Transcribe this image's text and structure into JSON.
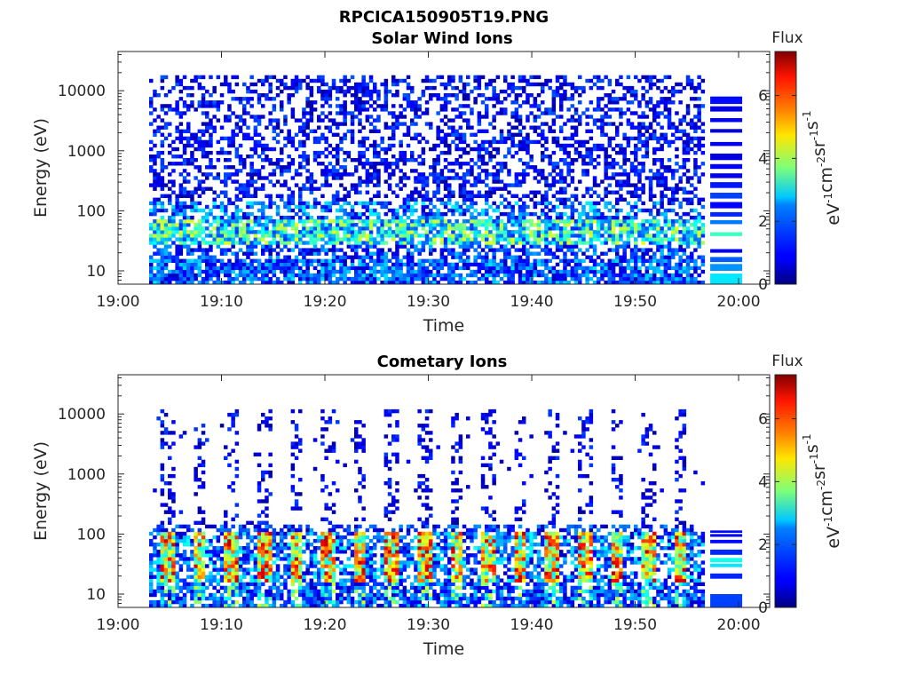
{
  "figure_title": "RPCICA150905T19.PNG",
  "chart_data": [
    {
      "type": "heatmap",
      "title": "Solar Wind Ions",
      "xlabel": "Time",
      "ylabel": "Energy (eV)",
      "yscale": "log",
      "ylim": [
        6,
        45000
      ],
      "xlim": [
        "19:00",
        "20:03"
      ],
      "xticks": [
        "19:00",
        "19:10",
        "19:20",
        "19:30",
        "19:40",
        "19:50",
        "20:00"
      ],
      "yticks": [
        10,
        100,
        1000,
        10000
      ],
      "ytick_labels": [
        "10",
        "100",
        "1000",
        "10000"
      ],
      "data_time_range": [
        "19:03",
        "19:57"
      ],
      "colorbar": {
        "title": "Flux",
        "label": "eV⁻¹cm⁻²sr⁻¹s⁻¹",
        "label_parts": [
          [
            "eV",
            "-1"
          ],
          [
            "cm",
            "-2"
          ],
          [
            "sr",
            "-1"
          ],
          [
            "s",
            "-1"
          ]
        ],
        "range": [
          0,
          7.4
        ],
        "ticks": [
          0,
          2,
          4,
          6
        ],
        "tick_labels": [
          "0",
          "2",
          "4",
          "6"
        ],
        "colormap": "jet"
      },
      "description": "Sparse low-flux (0-2) counts across 20 eV-15 keV; enhanced flux (~3-4.5) band near 25-60 eV; dense 0-2.5 flux below 15 eV."
    },
    {
      "type": "heatmap",
      "title": "Cometary Ions",
      "xlabel": "Time",
      "ylabel": "Energy (eV)",
      "yscale": "log",
      "ylim": [
        6,
        45000
      ],
      "xlim": [
        "19:00",
        "20:03"
      ],
      "xticks": [
        "19:00",
        "19:10",
        "19:20",
        "19:30",
        "19:40",
        "19:50",
        "20:00"
      ],
      "yticks": [
        10,
        100,
        1000,
        10000
      ],
      "ytick_labels": [
        "10",
        "100",
        "1000",
        "10000"
      ],
      "data_time_range": [
        "19:03",
        "19:57"
      ],
      "colorbar": {
        "title": "Flux",
        "label": "eV⁻¹cm⁻²sr⁻¹s⁻¹",
        "label_parts": [
          [
            "eV",
            "-1"
          ],
          [
            "cm",
            "-2"
          ],
          [
            "sr",
            "-1"
          ],
          [
            "s",
            "-1"
          ]
        ],
        "range": [
          0,
          7.4
        ],
        "ticks": [
          0,
          2,
          4,
          6
        ],
        "tick_labels": [
          "0",
          "2",
          "4",
          "6"
        ],
        "colormap": "jet"
      },
      "description": "Periodic (~3 min) bursts with peak flux ~6-7 between 20-90 eV; sparse low-flux streaks extending up to ~10 keV during bursts."
    }
  ]
}
